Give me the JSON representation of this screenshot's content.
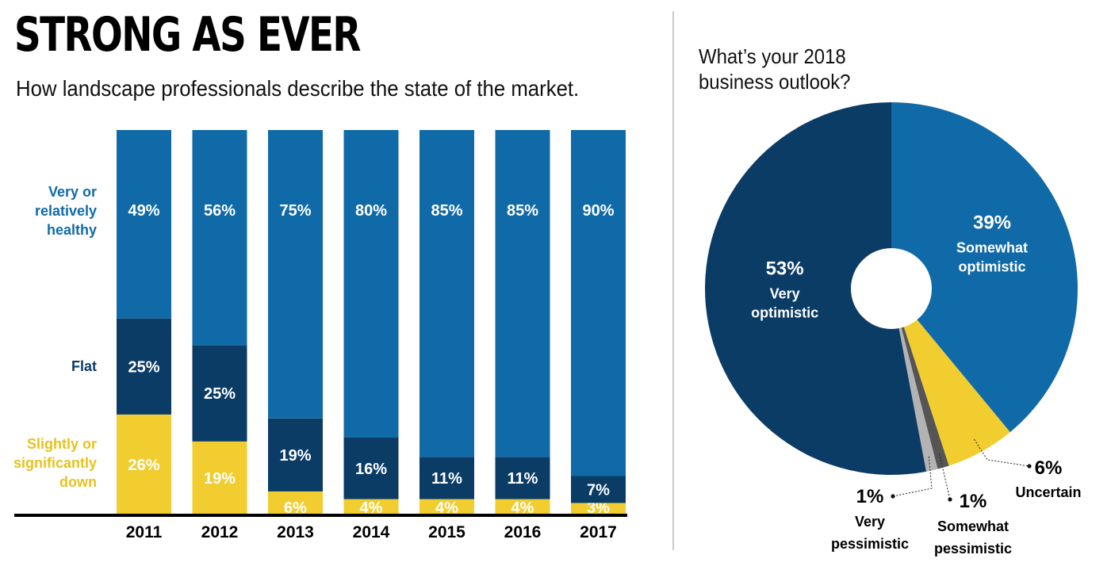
{
  "title": "STRONG AS EVER",
  "subtitle": "How landscape professionals describe the state of the market.",
  "pie_title_lines": [
    "What’s your 2018",
    "business outlook?"
  ],
  "colors": {
    "healthy": "#116aa8",
    "flat": "#0b3c66",
    "down": "#f2cd30",
    "pie_very_pessimistic": "#b3b3b3",
    "pie_somewhat_pessimistic": "#555555",
    "axis": "#000000"
  },
  "chart_data": [
    {
      "type": "bar",
      "stacked": true,
      "categories": [
        "2011",
        "2012",
        "2013",
        "2014",
        "2015",
        "2016",
        "2017"
      ],
      "series": [
        {
          "name": "Slightly or significantly down",
          "legend_lines": [
            "Slightly or",
            "significantly",
            "down"
          ],
          "color_key": "down",
          "values": [
            26,
            19,
            6,
            4,
            4,
            4,
            3
          ],
          "labels": [
            "26%",
            "19%",
            "6%",
            "4%",
            "4%",
            "4%",
            "3%"
          ]
        },
        {
          "name": "Flat",
          "legend_lines": [
            "Flat"
          ],
          "color_key": "flat",
          "values": [
            25,
            25,
            19,
            16,
            11,
            11,
            7
          ],
          "labels": [
            "25%",
            "25%",
            "19%",
            "16%",
            "11%",
            "11%",
            "7%"
          ]
        },
        {
          "name": "Very or relatively healthy",
          "legend_lines": [
            "Very or",
            "relatively",
            "healthy"
          ],
          "color_key": "healthy",
          "values": [
            49,
            56,
            75,
            80,
            85,
            85,
            90
          ],
          "labels": [
            "49%",
            "56%",
            "75%",
            "80%",
            "85%",
            "85%",
            "90%"
          ]
        }
      ],
      "ylim": [
        0,
        100
      ],
      "grid": false,
      "legend": "left"
    },
    {
      "type": "pie",
      "donut": true,
      "slices": [
        {
          "name": "Somewhat optimistic",
          "name_lines": [
            "Somewhat",
            "optimistic"
          ],
          "value": 39,
          "label": "39%",
          "color": "#116aa8",
          "label_color": "#ffffff"
        },
        {
          "name": "Uncertain",
          "name_lines": [
            "Uncertain"
          ],
          "value": 6,
          "label": "6%",
          "color": "#f2cd30",
          "label_color": "#000000"
        },
        {
          "name": "Somewhat pessimistic",
          "name_lines": [
            "Somewhat",
            "pessimistic"
          ],
          "value": 1,
          "label": "1%",
          "color": "#555555",
          "label_color": "#000000"
        },
        {
          "name": "Very pessimistic",
          "name_lines": [
            "Very",
            "pessimistic"
          ],
          "value": 1,
          "label": "1%",
          "color": "#b3b3b3",
          "label_color": "#000000"
        },
        {
          "name": "Very optimistic",
          "name_lines": [
            "Very",
            "optimistic"
          ],
          "value": 53,
          "label": "53%",
          "color": "#0b3c66",
          "label_color": "#ffffff"
        }
      ]
    }
  ]
}
